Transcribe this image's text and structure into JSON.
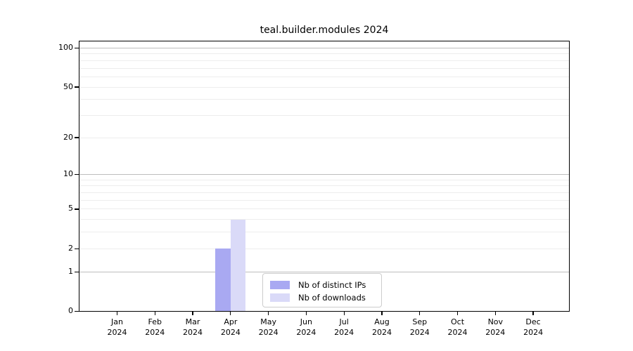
{
  "colors": {
    "background": "#ffffff",
    "axis": "#000000",
    "text": "#000000",
    "major_grid": "#bdbdbd",
    "minor_grid": "#ededed",
    "legend_border": "#cccccc"
  },
  "chart_data": {
    "type": "bar",
    "title": "teal.builder.modules 2024",
    "categories": [
      {
        "month": "Jan",
        "year": "2024"
      },
      {
        "month": "Feb",
        "year": "2024"
      },
      {
        "month": "Mar",
        "year": "2024"
      },
      {
        "month": "Apr",
        "year": "2024"
      },
      {
        "month": "May",
        "year": "2024"
      },
      {
        "month": "Jun",
        "year": "2024"
      },
      {
        "month": "Jul",
        "year": "2024"
      },
      {
        "month": "Aug",
        "year": "2024"
      },
      {
        "month": "Sep",
        "year": "2024"
      },
      {
        "month": "Oct",
        "year": "2024"
      },
      {
        "month": "Nov",
        "year": "2024"
      },
      {
        "month": "Dec",
        "year": "2024"
      }
    ],
    "series": [
      {
        "name": "Nb of distinct IPs",
        "color": "#a9a9f2",
        "values": [
          0,
          0,
          0,
          2,
          0,
          0,
          0,
          0,
          0,
          0,
          0,
          0
        ]
      },
      {
        "name": "Nb of downloads",
        "color": "#dadaf8",
        "values": [
          0,
          0,
          0,
          4,
          0,
          0,
          0,
          0,
          0,
          0,
          0,
          0
        ]
      }
    ],
    "y_axis": {
      "scale": "log10(value+1)",
      "ticks": [
        0,
        1,
        2,
        5,
        10,
        20,
        50,
        100
      ],
      "major_gridlines": [
        1,
        10,
        100
      ],
      "minor_gridlines": [
        2,
        3,
        4,
        5,
        6,
        7,
        8,
        9,
        20,
        30,
        40,
        50,
        60,
        70,
        80,
        90
      ],
      "ylim": [
        0,
        115
      ]
    },
    "x_axis": {
      "gridlines": false
    },
    "legend_position": "lower center",
    "grid": true
  }
}
